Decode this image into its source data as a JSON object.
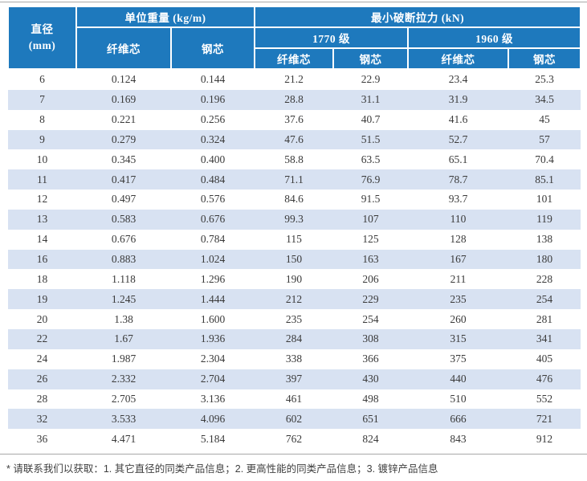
{
  "colors": {
    "header_bg": "#1e79bd",
    "header_text": "#ffffff",
    "stripe_bg": "#d8e2f2",
    "body_text": "#3a3a3a",
    "rule": "#a8a8a8",
    "footnote_text": "#3f3f3f"
  },
  "table": {
    "header": {
      "diameter_line1": "直径",
      "diameter_line2": "(mm)",
      "unit_weight": "单位重量 (kg/m)",
      "min_breaking_force": "最小破断拉力 (kN)",
      "grade_1770": "1770 级",
      "grade_1960": "1960 级",
      "fiber_core": "纤维芯",
      "steel_core": "钢芯"
    },
    "rows": [
      [
        "6",
        "0.124",
        "0.144",
        "21.2",
        "22.9",
        "23.4",
        "25.3"
      ],
      [
        "7",
        "0.169",
        "0.196",
        "28.8",
        "31.1",
        "31.9",
        "34.5"
      ],
      [
        "8",
        "0.221",
        "0.256",
        "37.6",
        "40.7",
        "41.6",
        "45"
      ],
      [
        "9",
        "0.279",
        "0.324",
        "47.6",
        "51.5",
        "52.7",
        "57"
      ],
      [
        "10",
        "0.345",
        "0.400",
        "58.8",
        "63.5",
        "65.1",
        "70.4"
      ],
      [
        "11",
        "0.417",
        "0.484",
        "71.1",
        "76.9",
        "78.7",
        "85.1"
      ],
      [
        "12",
        "0.497",
        "0.576",
        "84.6",
        "91.5",
        "93.7",
        "101"
      ],
      [
        "13",
        "0.583",
        "0.676",
        "99.3",
        "107",
        "110",
        "119"
      ],
      [
        "14",
        "0.676",
        "0.784",
        "115",
        "125",
        "128",
        "138"
      ],
      [
        "16",
        "0.883",
        "1.024",
        "150",
        "163",
        "167",
        "180"
      ],
      [
        "18",
        "1.118",
        "1.296",
        "190",
        "206",
        "211",
        "228"
      ],
      [
        "19",
        "1.245",
        "1.444",
        "212",
        "229",
        "235",
        "254"
      ],
      [
        "20",
        "1.38",
        "1.600",
        "235",
        "254",
        "260",
        "281"
      ],
      [
        "22",
        "1.67",
        "1.936",
        "284",
        "308",
        "315",
        "341"
      ],
      [
        "24",
        "1.987",
        "2.304",
        "338",
        "366",
        "375",
        "405"
      ],
      [
        "26",
        "2.332",
        "2.704",
        "397",
        "430",
        "440",
        "476"
      ],
      [
        "28",
        "2.705",
        "3.136",
        "461",
        "498",
        "510",
        "552"
      ],
      [
        "32",
        "3.533",
        "4.096",
        "602",
        "651",
        "666",
        "721"
      ],
      [
        "36",
        "4.471",
        "5.184",
        "762",
        "824",
        "843",
        "912"
      ]
    ]
  },
  "footnote": "* 请联系我们以获取：1. 其它直径的同类产品信息；2. 更高性能的同类产品信息；3. 镀锌产品信息"
}
